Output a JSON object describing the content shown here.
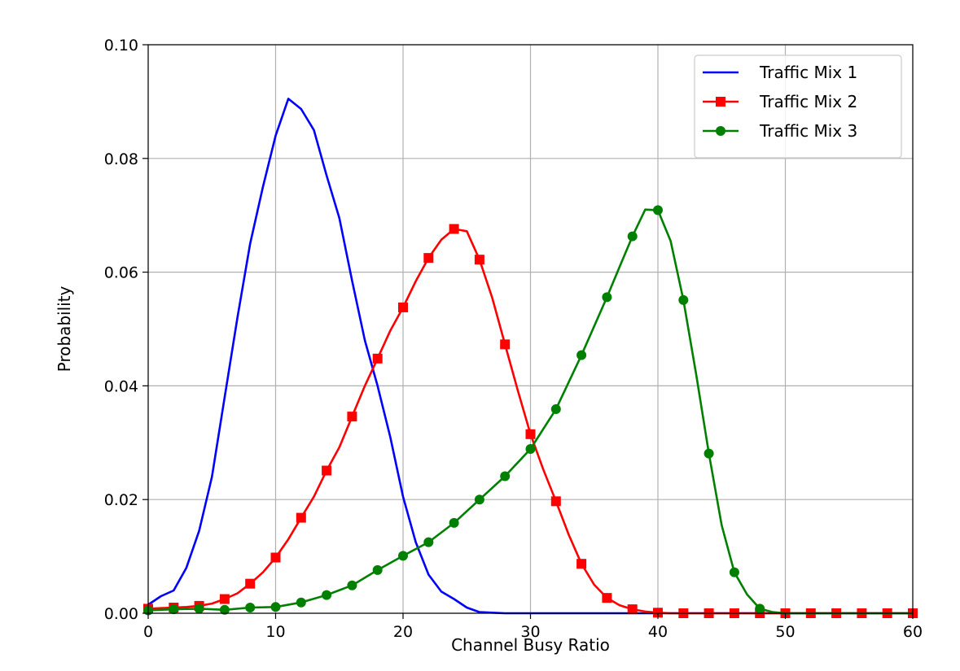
{
  "chart_data": {
    "type": "line",
    "title": "",
    "xlabel": "Channel Busy Ratio",
    "ylabel": "Probability",
    "xlim": [
      0,
      60
    ],
    "ylim": [
      0,
      0.1
    ],
    "xticks": [
      0,
      10,
      20,
      30,
      40,
      50,
      60
    ],
    "xtick_labels": [
      "0",
      "10",
      "20",
      "30",
      "40",
      "50",
      "60"
    ],
    "yticks": [
      0,
      0.02,
      0.04,
      0.06,
      0.08,
      0.1
    ],
    "ytick_labels": [
      "0.00",
      "0.02",
      "0.04",
      "0.06",
      "0.08",
      "0.10"
    ],
    "grid": true,
    "legend_position": "top-right",
    "series": [
      {
        "name": "Traffic Mix 1",
        "color": "#0000ff",
        "marker": "none",
        "x": [
          0,
          1,
          2,
          3,
          4,
          5,
          6,
          7,
          8,
          9,
          10,
          11,
          12,
          13,
          14,
          15,
          16,
          17,
          18,
          19,
          20,
          21,
          22,
          23,
          24,
          25,
          26,
          27,
          28,
          30,
          35,
          40,
          45,
          50,
          55,
          60
        ],
        "y": [
          0.0015,
          0.003,
          0.004,
          0.008,
          0.0145,
          0.024,
          0.038,
          0.052,
          0.065,
          0.075,
          0.084,
          0.0905,
          0.0887,
          0.085,
          0.077,
          0.0695,
          0.0585,
          0.048,
          0.04,
          0.031,
          0.0205,
          0.0125,
          0.0068,
          0.0038,
          0.0025,
          0.001,
          0.0002,
          0.0001,
          0.0,
          0.0,
          0.0,
          0.0,
          0.0,
          0.0,
          0.0,
          0.0
        ]
      },
      {
        "name": "Traffic Mix 2",
        "color": "#ff0000",
        "marker": "square",
        "x": [
          0,
          1,
          2,
          3,
          4,
          5,
          6,
          7,
          8,
          9,
          10,
          11,
          12,
          13,
          14,
          15,
          16,
          17,
          18,
          19,
          20,
          21,
          22,
          23,
          24,
          25,
          26,
          27,
          28,
          29,
          30,
          31,
          32,
          33,
          34,
          35,
          36,
          37,
          38,
          39,
          40,
          41,
          42,
          44,
          46,
          48,
          50,
          52,
          54,
          56,
          58,
          60
        ],
        "y": [
          0.0008,
          0.0009,
          0.001,
          0.0011,
          0.0013,
          0.0017,
          0.0025,
          0.0035,
          0.0052,
          0.0072,
          0.0098,
          0.013,
          0.0168,
          0.0205,
          0.0251,
          0.0292,
          0.0346,
          0.04,
          0.0448,
          0.0497,
          0.0538,
          0.0584,
          0.0625,
          0.0657,
          0.0676,
          0.0672,
          0.0622,
          0.0555,
          0.0473,
          0.0392,
          0.0315,
          0.0253,
          0.0197,
          0.0138,
          0.0087,
          0.005,
          0.0027,
          0.0014,
          0.0007,
          0.0003,
          0.0001,
          0.0,
          0.0,
          0.0,
          0.0,
          0.0,
          0.0,
          0.0,
          0.0,
          0.0,
          0.0,
          0.0
        ],
        "marker_x": [
          0,
          2,
          4,
          6,
          8,
          10,
          12,
          14,
          16,
          18,
          20,
          22,
          24,
          26,
          28,
          30,
          32,
          34,
          36,
          38,
          40,
          42,
          44,
          46,
          48,
          50,
          52,
          54,
          56,
          58,
          60
        ]
      },
      {
        "name": "Traffic Mix 3",
        "color": "#008000",
        "marker": "circle",
        "x": [
          0,
          2,
          4,
          6,
          8,
          10,
          12,
          14,
          16,
          18,
          20,
          22,
          24,
          26,
          28,
          30,
          32,
          34,
          36,
          37,
          38,
          39,
          40,
          41,
          42,
          43,
          44,
          45,
          46,
          47,
          48,
          49,
          50,
          52,
          54,
          56,
          58,
          60
        ],
        "y": [
          0.0005,
          0.0007,
          0.0008,
          0.0006,
          0.001,
          0.0011,
          0.0019,
          0.0032,
          0.0049,
          0.0076,
          0.0101,
          0.0125,
          0.0159,
          0.02,
          0.0241,
          0.0289,
          0.0359,
          0.0454,
          0.0556,
          0.061,
          0.0663,
          0.071,
          0.0709,
          0.0655,
          0.0551,
          0.042,
          0.0281,
          0.0155,
          0.0072,
          0.0033,
          0.0008,
          0.0002,
          0.0,
          0.0,
          0.0,
          0.0,
          0.0,
          0.0
        ],
        "marker_x": [
          0,
          2,
          4,
          6,
          8,
          10,
          12,
          14,
          16,
          18,
          20,
          22,
          24,
          26,
          28,
          30,
          32,
          34,
          36,
          38,
          40,
          42,
          44,
          46,
          48
        ]
      }
    ]
  }
}
